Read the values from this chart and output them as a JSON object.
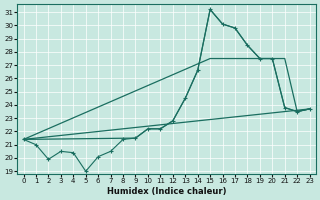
{
  "xlabel": "Humidex (Indice chaleur)",
  "background_color": "#c8e8e0",
  "line_color": "#1a6e60",
  "xlim": [
    -0.5,
    23.5
  ],
  "ylim": [
    18.8,
    31.6
  ],
  "yticks": [
    19,
    20,
    21,
    22,
    23,
    24,
    25,
    26,
    27,
    28,
    29,
    30,
    31
  ],
  "xticks": [
    0,
    1,
    2,
    3,
    4,
    5,
    6,
    7,
    8,
    9,
    10,
    11,
    12,
    13,
    14,
    15,
    16,
    17,
    18,
    19,
    20,
    21,
    22,
    23
  ],
  "main_line": {
    "x": [
      0,
      1,
      2,
      3,
      4,
      5,
      6,
      7,
      8,
      9,
      10,
      11,
      12,
      13,
      14,
      15,
      16,
      17,
      18,
      19,
      20,
      21,
      22,
      23
    ],
    "y": [
      21.4,
      21.0,
      19.9,
      20.5,
      20.4,
      19.0,
      20.1,
      20.5,
      21.4,
      21.5,
      22.2,
      22.2,
      22.8,
      24.5,
      26.6,
      31.2,
      30.1,
      29.8,
      28.5,
      27.5,
      27.5,
      23.8,
      23.5,
      23.7
    ]
  },
  "smooth_line1": {
    "x": [
      0,
      23
    ],
    "y": [
      21.4,
      23.7
    ]
  },
  "smooth_line2": {
    "x": [
      0,
      15,
      20,
      21,
      22,
      23
    ],
    "y": [
      21.4,
      27.5,
      27.5,
      27.5,
      23.5,
      23.7
    ]
  },
  "envelope_line": {
    "x": [
      0,
      9,
      10,
      11,
      12,
      13,
      14,
      15,
      16,
      17,
      18,
      19,
      20,
      21,
      22,
      23
    ],
    "y": [
      21.4,
      21.5,
      22.2,
      22.2,
      22.8,
      24.5,
      26.6,
      31.2,
      30.1,
      29.8,
      28.5,
      27.5,
      27.5,
      23.8,
      23.5,
      23.7
    ]
  }
}
